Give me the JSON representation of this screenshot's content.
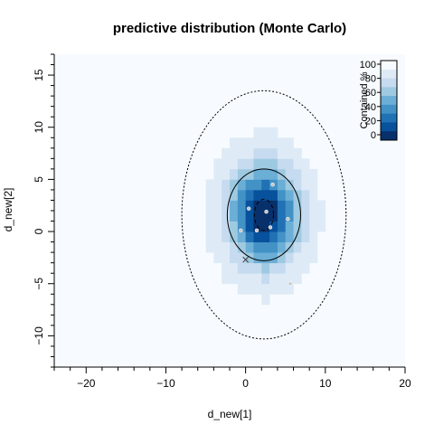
{
  "chart_data": {
    "type": "heatmap",
    "title": "predictive distribution (Monte Carlo)",
    "xlabel": "d_new[1]",
    "ylabel": "d_new[2]",
    "xlim": [
      -24,
      20
    ],
    "ylim": [
      -13,
      17
    ],
    "xticks": [
      -20,
      -10,
      0,
      10,
      20
    ],
    "xtick_labels": [
      "−20",
      "−10",
      "0",
      "10",
      "20"
    ],
    "yticks": [
      -10,
      -5,
      0,
      5,
      10,
      15
    ],
    "ytick_labels": [
      "−10",
      "−5",
      "0",
      "5",
      "10",
      "15"
    ],
    "x_minor_step": 2,
    "y_minor_step": 1,
    "center": [
      2.3,
      1.6
    ],
    "sigma": [
      2.9,
      3.2
    ],
    "cell_size": 1,
    "contours": [
      {
        "level": 99,
        "rx": 10.3,
        "ry": 11.9,
        "style": "dotted"
      },
      {
        "level": 67,
        "rx": 4.6,
        "ry": 4.4,
        "style": "solid"
      },
      {
        "level": 10,
        "rx": 1.2,
        "ry": 1.5,
        "style": "dashed"
      }
    ],
    "points": [
      {
        "x": 3.4,
        "y": 4.5
      },
      {
        "x": 0.4,
        "y": 2.2
      },
      {
        "x": 2.6,
        "y": 1.9
      },
      {
        "x": 5.3,
        "y": 1.2
      },
      {
        "x": 3.1,
        "y": 0.4
      },
      {
        "x": 1.4,
        "y": 0.1
      },
      {
        "x": -0.6,
        "y": 0.1
      },
      {
        "x": 5.6,
        "y": -5.0
      }
    ],
    "cross_marker": {
      "x": 0.0,
      "y": -2.7
    },
    "legend": {
      "title": "Contained %",
      "labels": [
        "100",
        "80",
        "60",
        "40",
        "20",
        "0"
      ],
      "colors": [
        "#f7fbff",
        "#deebf7",
        "#c6dbef",
        "#9ecae1",
        "#6baed6",
        "#4292c6",
        "#2171b5",
        "#08519c",
        "#08306b"
      ],
      "position": "top-right"
    },
    "background_color": "#f7fbff"
  }
}
